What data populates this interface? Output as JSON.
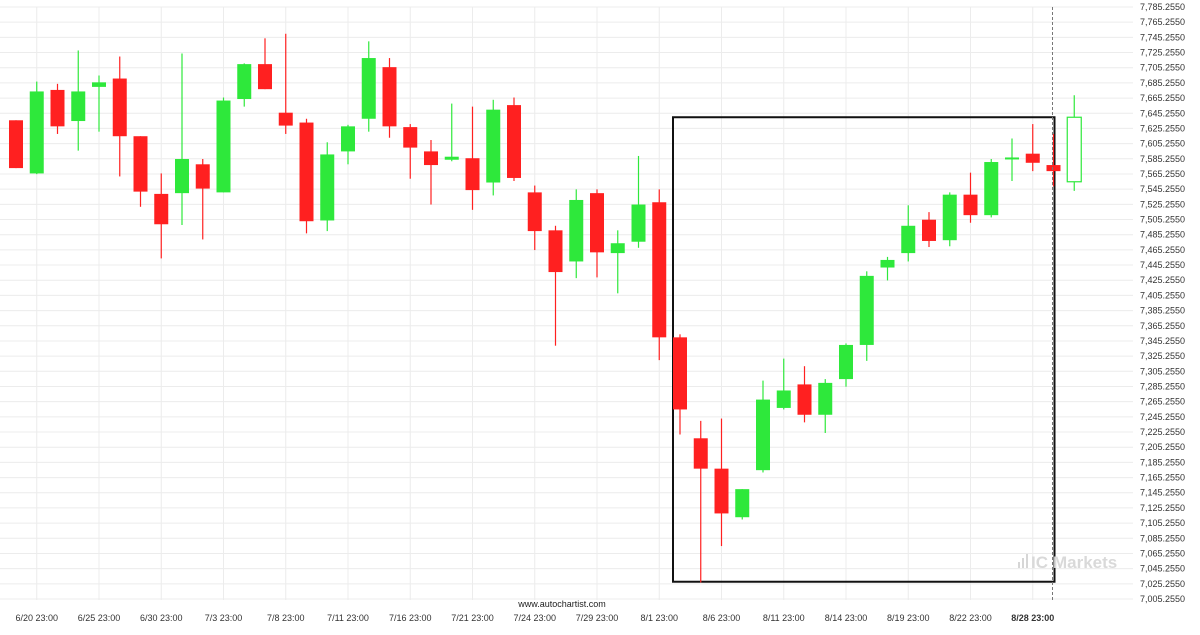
{
  "source_label": "www.autochartist.com",
  "brand": {
    "mark": "IC",
    "text": "Markets",
    "color": "#d6d6d6"
  },
  "colors": {
    "bull": "#2ee83b",
    "bear": "#ff2020",
    "wick_bull": "#2ee83b",
    "wick_bear": "#ff2020",
    "grid": "#ececec",
    "pattern_box": "#111111",
    "last_candle": "#2ee83b"
  },
  "chart_data": {
    "type": "candlestick",
    "title": "",
    "xlabel": "",
    "ylabel": "",
    "grid": true,
    "ylim": [
      7005.255,
      7785.255
    ],
    "y_ticks": [
      "7,785.2550",
      "7,765.2550",
      "7,745.2550",
      "7,725.2550",
      "7,705.2550",
      "7,685.2550",
      "7,665.2550",
      "7,645.2550",
      "7,625.2550",
      "7,605.2550",
      "7,585.2550",
      "7,565.2550",
      "7,545.2550",
      "7,525.2550",
      "7,505.2550",
      "7,485.2550",
      "7,465.2550",
      "7,445.2550",
      "7,425.2550",
      "7,405.2550",
      "7,385.2550",
      "7,365.2550",
      "7,345.2550",
      "7,325.2550",
      "7,305.2550",
      "7,285.2550",
      "7,265.2550",
      "7,245.2550",
      "7,225.2550",
      "7,205.2550",
      "7,185.2550",
      "7,165.2550",
      "7,145.2550",
      "7,125.2550",
      "7,105.2550",
      "7,085.2550",
      "7,065.2550",
      "7,045.2550",
      "7,025.2550",
      "7,005.2550"
    ],
    "x_ticks": [
      {
        "label": "6/20 23:00",
        "index": 1,
        "bold": false
      },
      {
        "label": "6/25 23:00",
        "index": 4,
        "bold": false
      },
      {
        "label": "6/30 23:00",
        "index": 7,
        "bold": false
      },
      {
        "label": "7/3 23:00",
        "index": 10,
        "bold": false
      },
      {
        "label": "7/8 23:00",
        "index": 13,
        "bold": false
      },
      {
        "label": "7/11 23:00",
        "index": 16,
        "bold": false
      },
      {
        "label": "7/16 23:00",
        "index": 19,
        "bold": false
      },
      {
        "label": "7/21 23:00",
        "index": 22,
        "bold": false
      },
      {
        "label": "7/24 23:00",
        "index": 25,
        "bold": false
      },
      {
        "label": "7/29 23:00",
        "index": 28,
        "bold": false
      },
      {
        "label": "8/1 23:00",
        "index": 31,
        "bold": false
      },
      {
        "label": "8/6 23:00",
        "index": 34,
        "bold": false
      },
      {
        "label": "8/11 23:00",
        "index": 37,
        "bold": false
      },
      {
        "label": "8/14 23:00",
        "index": 40,
        "bold": false
      },
      {
        "label": "8/19 23:00",
        "index": 43,
        "bold": false
      },
      {
        "label": "8/22 23:00",
        "index": 46,
        "bold": false
      },
      {
        "label": "8/28 23:00",
        "index": 49,
        "bold": true
      }
    ],
    "candles": [
      {
        "o": 7636,
        "h": 7636,
        "l": 7573,
        "c": 7573
      },
      {
        "o": 7566,
        "h": 7687,
        "l": 7565,
        "c": 7674
      },
      {
        "o": 7676,
        "h": 7684,
        "l": 7618,
        "c": 7628
      },
      {
        "o": 7635,
        "h": 7728,
        "l": 7596,
        "c": 7674
      },
      {
        "o": 7680,
        "h": 7695,
        "l": 7621,
        "c": 7686
      },
      {
        "o": 7691,
        "h": 7720,
        "l": 7562,
        "c": 7615
      },
      {
        "o": 7615,
        "h": 7615,
        "l": 7522,
        "c": 7542
      },
      {
        "o": 7539,
        "h": 7566,
        "l": 7454,
        "c": 7499
      },
      {
        "o": 7540,
        "h": 7724,
        "l": 7498,
        "c": 7585
      },
      {
        "o": 7578,
        "h": 7585,
        "l": 7479,
        "c": 7546
      },
      {
        "o": 7541,
        "h": 7666,
        "l": 7541,
        "c": 7662
      },
      {
        "o": 7664,
        "h": 7711,
        "l": 7654,
        "c": 7710
      },
      {
        "o": 7710,
        "h": 7744,
        "l": 7677,
        "c": 7677
      },
      {
        "o": 7646,
        "h": 7750,
        "l": 7618,
        "c": 7629
      },
      {
        "o": 7633,
        "h": 7638,
        "l": 7487,
        "c": 7503
      },
      {
        "o": 7504,
        "h": 7607,
        "l": 7490,
        "c": 7591
      },
      {
        "o": 7595,
        "h": 7630,
        "l": 7578,
        "c": 7628
      },
      {
        "o": 7638,
        "h": 7740,
        "l": 7621,
        "c": 7718
      },
      {
        "o": 7706,
        "h": 7718,
        "l": 7613,
        "c": 7628
      },
      {
        "o": 7627,
        "h": 7631,
        "l": 7559,
        "c": 7600
      },
      {
        "o": 7595,
        "h": 7610,
        "l": 7525,
        "c": 7577
      },
      {
        "o": 7584,
        "h": 7658,
        "l": 7582,
        "c": 7588
      },
      {
        "o": 7586,
        "h": 7654,
        "l": 7518,
        "c": 7544
      },
      {
        "o": 7554,
        "h": 7663,
        "l": 7537,
        "c": 7650
      },
      {
        "o": 7656,
        "h": 7666,
        "l": 7556,
        "c": 7560
      },
      {
        "o": 7541,
        "h": 7550,
        "l": 7465,
        "c": 7490
      },
      {
        "o": 7491,
        "h": 7497,
        "l": 7339,
        "c": 7436
      },
      {
        "o": 7450,
        "h": 7545,
        "l": 7428,
        "c": 7531
      },
      {
        "o": 7540,
        "h": 7545,
        "l": 7429,
        "c": 7462
      },
      {
        "o": 7461,
        "h": 7491,
        "l": 7408,
        "c": 7474
      },
      {
        "o": 7476,
        "h": 7589,
        "l": 7468,
        "c": 7525
      },
      {
        "o": 7528,
        "h": 7545,
        "l": 7320,
        "c": 7350
      },
      {
        "o": 7350,
        "h": 7354,
        "l": 7222,
        "c": 7255
      },
      {
        "o": 7217,
        "h": 7240,
        "l": 7027,
        "c": 7177
      },
      {
        "o": 7177,
        "h": 7243,
        "l": 7075,
        "c": 7118
      },
      {
        "o": 7113,
        "h": 7150,
        "l": 7110,
        "c": 7150
      },
      {
        "o": 7175,
        "h": 7293,
        "l": 7172,
        "c": 7268
      },
      {
        "o": 7257,
        "h": 7322,
        "l": 7255,
        "c": 7280
      },
      {
        "o": 7288,
        "h": 7312,
        "l": 7238,
        "c": 7248
      },
      {
        "o": 7248,
        "h": 7295,
        "l": 7224,
        "c": 7290
      },
      {
        "o": 7295,
        "h": 7342,
        "l": 7285,
        "c": 7340
      },
      {
        "o": 7340,
        "h": 7437,
        "l": 7319,
        "c": 7431
      },
      {
        "o": 7442,
        "h": 7456,
        "l": 7425,
        "c": 7452
      },
      {
        "o": 7461,
        "h": 7524,
        "l": 7450,
        "c": 7497
      },
      {
        "o": 7505,
        "h": 7515,
        "l": 7469,
        "c": 7477
      },
      {
        "o": 7478,
        "h": 7541,
        "l": 7470,
        "c": 7538
      },
      {
        "o": 7538,
        "h": 7567,
        "l": 7501,
        "c": 7511
      },
      {
        "o": 7511,
        "h": 7585,
        "l": 7508,
        "c": 7581
      },
      {
        "o": 7586,
        "h": 7612,
        "l": 7556,
        "c": 7587
      },
      {
        "o": 7592,
        "h": 7631,
        "l": 7569,
        "c": 7580
      },
      {
        "o": 7577,
        "h": 7618,
        "l": 7549,
        "c": 7569
      },
      {
        "o": 7555,
        "h": 7669,
        "l": 7543,
        "c": 7640,
        "hollow": true
      }
    ],
    "pattern_box": {
      "start_index": 32,
      "end_index": 50,
      "top": 7640,
      "bottom": 7028
    },
    "current_marker_index": 50
  }
}
